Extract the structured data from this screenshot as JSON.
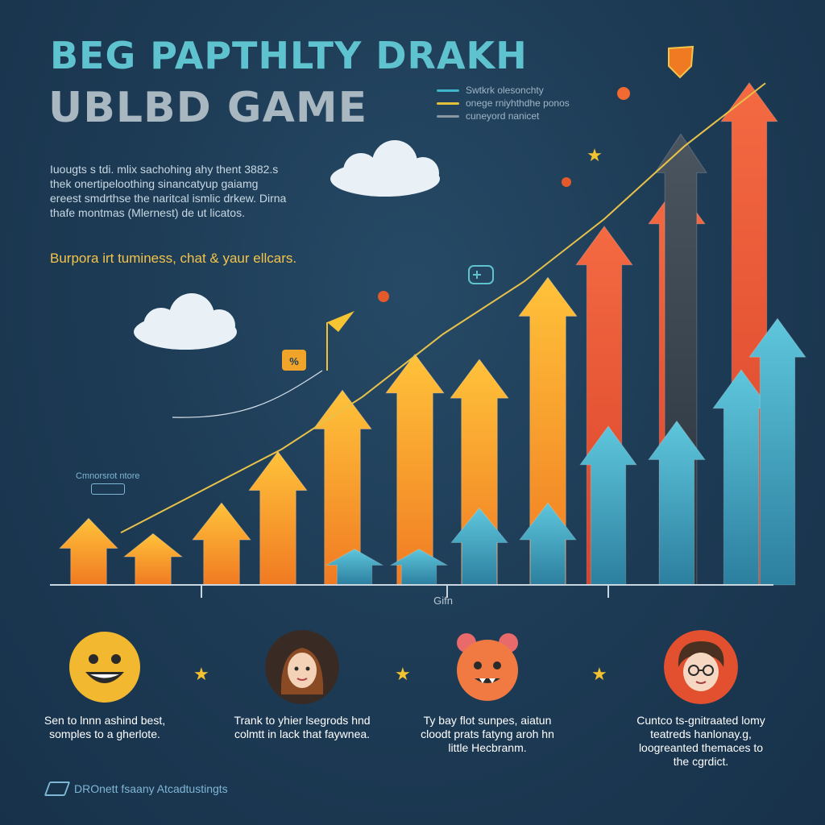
{
  "header": {
    "title_line1": "BEG PAPTHLTY DRAKH",
    "title_line2": "UBLBD GAME"
  },
  "legend": {
    "items": [
      {
        "label": "Swtkrk olesonchty",
        "color": "#3fb6c9"
      },
      {
        "label": "onege rniyhthdhe ponos",
        "color": "#e3c03a"
      },
      {
        "label": "cuneyord nanicet",
        "color": "#8a98a3"
      }
    ]
  },
  "intro": {
    "text": "Iuougts s tdi. mlix sachohing ahy thent 3882.s thek onertipeloothing sinancatyup gaiamg ereest smdrthse the naritcal ismlic drkew. Dirna thafe montmas (Mlernest) de ut licatos.",
    "tagline": "Burpora irt tuminess, chat & yaur ellcars."
  },
  "callout": {
    "text": "Cmnorsrot ntore"
  },
  "chart_data": {
    "type": "bar",
    "xlabel": "Gifn",
    "ylabel": "",
    "series": [
      {
        "name": "",
        "color": "#f08a2a",
        "values": [
          0.13,
          0.1,
          0.16,
          0.26,
          0.38,
          0.45,
          0.44,
          0.6
        ]
      },
      {
        "name": "",
        "color": "#e8502e",
        "values": [
          0.13,
          0.1,
          0.16,
          0.26,
          0.38,
          0.45,
          0.44,
          0.6,
          0.7,
          0.78,
          0.98
        ]
      },
      {
        "name": "",
        "color": "#3a4550",
        "values": [
          0.88
        ]
      },
      {
        "name": "",
        "color": "#4aa7c4",
        "values": [
          0.07,
          0.07,
          0.15,
          0.16,
          0.31,
          0.32,
          0.42,
          0.52
        ]
      }
    ],
    "trend_line": {
      "color": "#e8c24a",
      "values": [
        0.1,
        0.18,
        0.26,
        0.36,
        0.48,
        0.58,
        0.7,
        0.84,
        0.96
      ]
    },
    "grid": false,
    "legend_position": "top-right"
  },
  "personas": [
    {
      "name": "smiley-avatar",
      "caption": "Sen to lnnn ashind best, somples to a gherlote.",
      "bg": "#f2b830"
    },
    {
      "name": "woman-avatar",
      "caption": "Trank to yhier lsegrods hnd colmtt in lack that faywnea.",
      "bg": "#5a3a2a"
    },
    {
      "name": "creature-avatar",
      "caption": "Ty bay flot sunpes, aiatun cloodt prats fatyng aroh hn little Hecbranm.",
      "bg": "#f07040"
    },
    {
      "name": "man-avatar",
      "caption": "Cuntco ts-gnitraated lomy teatreds hanlonay.g, loogreanted themaces to the cgrdict.",
      "bg": "#e25030"
    }
  ],
  "footer": {
    "text": "DROnett fsaany Atcadtustingts"
  }
}
